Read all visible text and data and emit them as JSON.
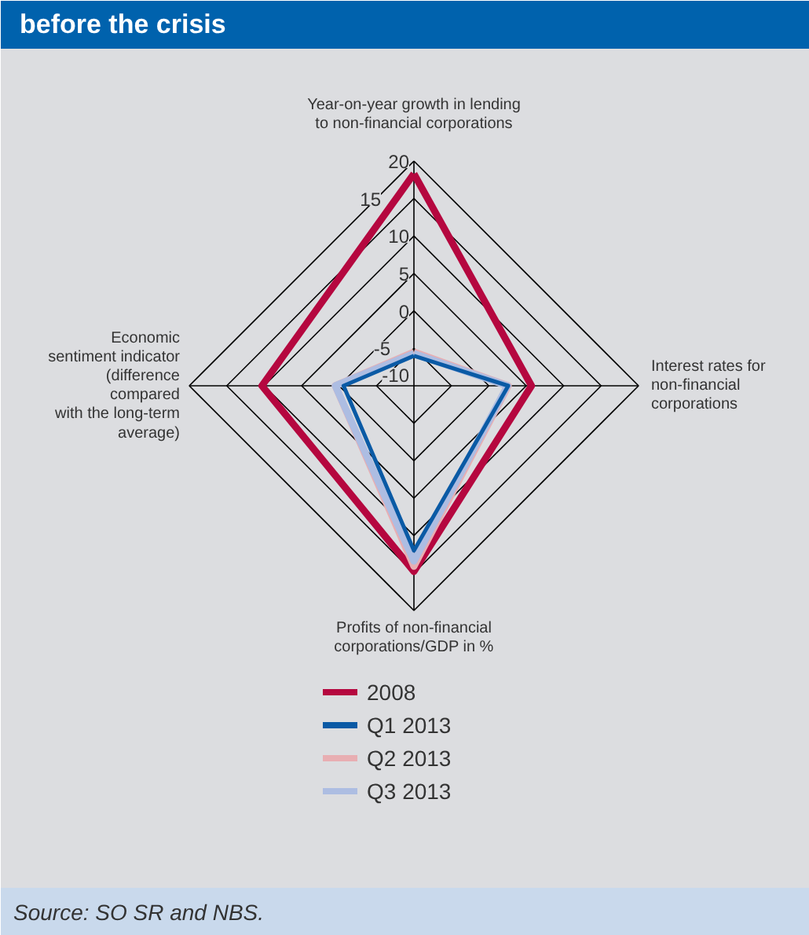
{
  "chart_data": {
    "type": "radar",
    "title": "before the crisis",
    "categories": [
      "Year-on-year growth in lending\nto non-financial corporations",
      "Interest rates for\nnon-financial\ncorporations",
      "Profits of non-financial\ncorporations/GDP in %",
      "Economic\nsentiment indicator\n(difference\ncompared\nwith the long-term\naverage)"
    ],
    "series": [
      {
        "name": "2008",
        "color": "#b5073f",
        "values": [
          18.3,
          5.7,
          14.8,
          10.3
        ]
      },
      {
        "name": "Q1 2013",
        "color": "#0a5aa5",
        "values": [
          -6,
          2.6,
          12,
          -0.6
        ]
      },
      {
        "name": "Q2 2013",
        "color": "#e8aeb2",
        "values": [
          -5.5,
          2.6,
          14.1,
          0.5
        ]
      },
      {
        "name": "Q3 2013",
        "color": "#adbde2",
        "values": [
          -5.7,
          2.5,
          13.4,
          0.5
        ]
      }
    ],
    "ylim": [
      -10,
      20
    ],
    "yticks": [
      -10,
      -5,
      0,
      5,
      10,
      15,
      20
    ],
    "grid": true,
    "legend": "bottom",
    "line_style": "solid",
    "marker": "none",
    "annotations": [
      "Source: SO SR and NBS."
    ]
  }
}
